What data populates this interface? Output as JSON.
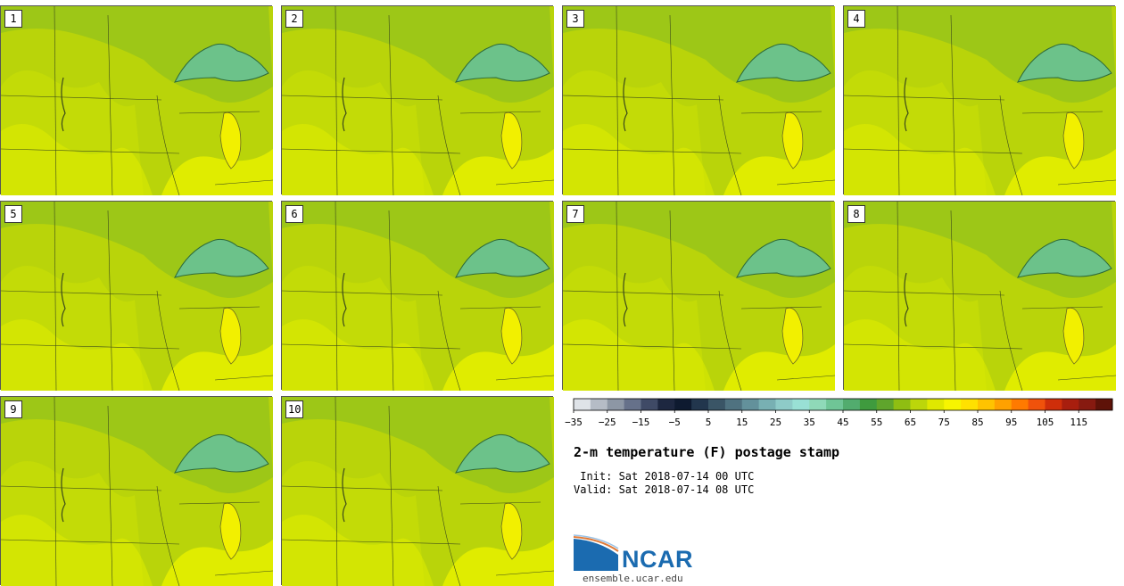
{
  "panels": [
    {
      "label": "1"
    },
    {
      "label": "2"
    },
    {
      "label": "3"
    },
    {
      "label": "4"
    },
    {
      "label": "5"
    },
    {
      "label": "6"
    },
    {
      "label": "7"
    },
    {
      "label": "8"
    },
    {
      "label": "9"
    },
    {
      "label": "10"
    }
  ],
  "colorbar": {
    "ticks": [
      "−35",
      "−25",
      "−15",
      "−5",
      "5",
      "15",
      "25",
      "35",
      "45",
      "55",
      "65",
      "75",
      "85",
      "95",
      "105",
      "115"
    ],
    "colors": [
      "#dfe3e8",
      "#b5bcc6",
      "#8d97a5",
      "#66718a",
      "#3f4a66",
      "#1d2740",
      "#0e1a30",
      "#22364d",
      "#3a5566",
      "#4f7280",
      "#63919b",
      "#78b0b3",
      "#8ecbc8",
      "#99e0d5",
      "#8fd9b8",
      "#6fc596",
      "#52ac6e",
      "#3f9b3e",
      "#5fa52c",
      "#8fbe12",
      "#bcd60a",
      "#dfe800",
      "#f7f500",
      "#ffe100",
      "#ffc300",
      "#ffa100",
      "#ff7a00",
      "#f0520b",
      "#cf2e0a",
      "#a81e0e",
      "#871a10",
      "#5e1208"
    ]
  },
  "title": "2-m temperature (F) postage stamp",
  "init": " Init: Sat 2018-07-14 00 UTC",
  "valid": "Valid: Sat 2018-07-14 08 UTC",
  "logo": {
    "text": "NCAR",
    "site": "ensemble.ucar.edu"
  },
  "colors": {
    "base_green": "#b9d40a",
    "dark_green": "#87bc22",
    "yellow": "#e0ec00",
    "lake": "#6cc28a",
    "ncar_blue": "#1b6bb0"
  }
}
